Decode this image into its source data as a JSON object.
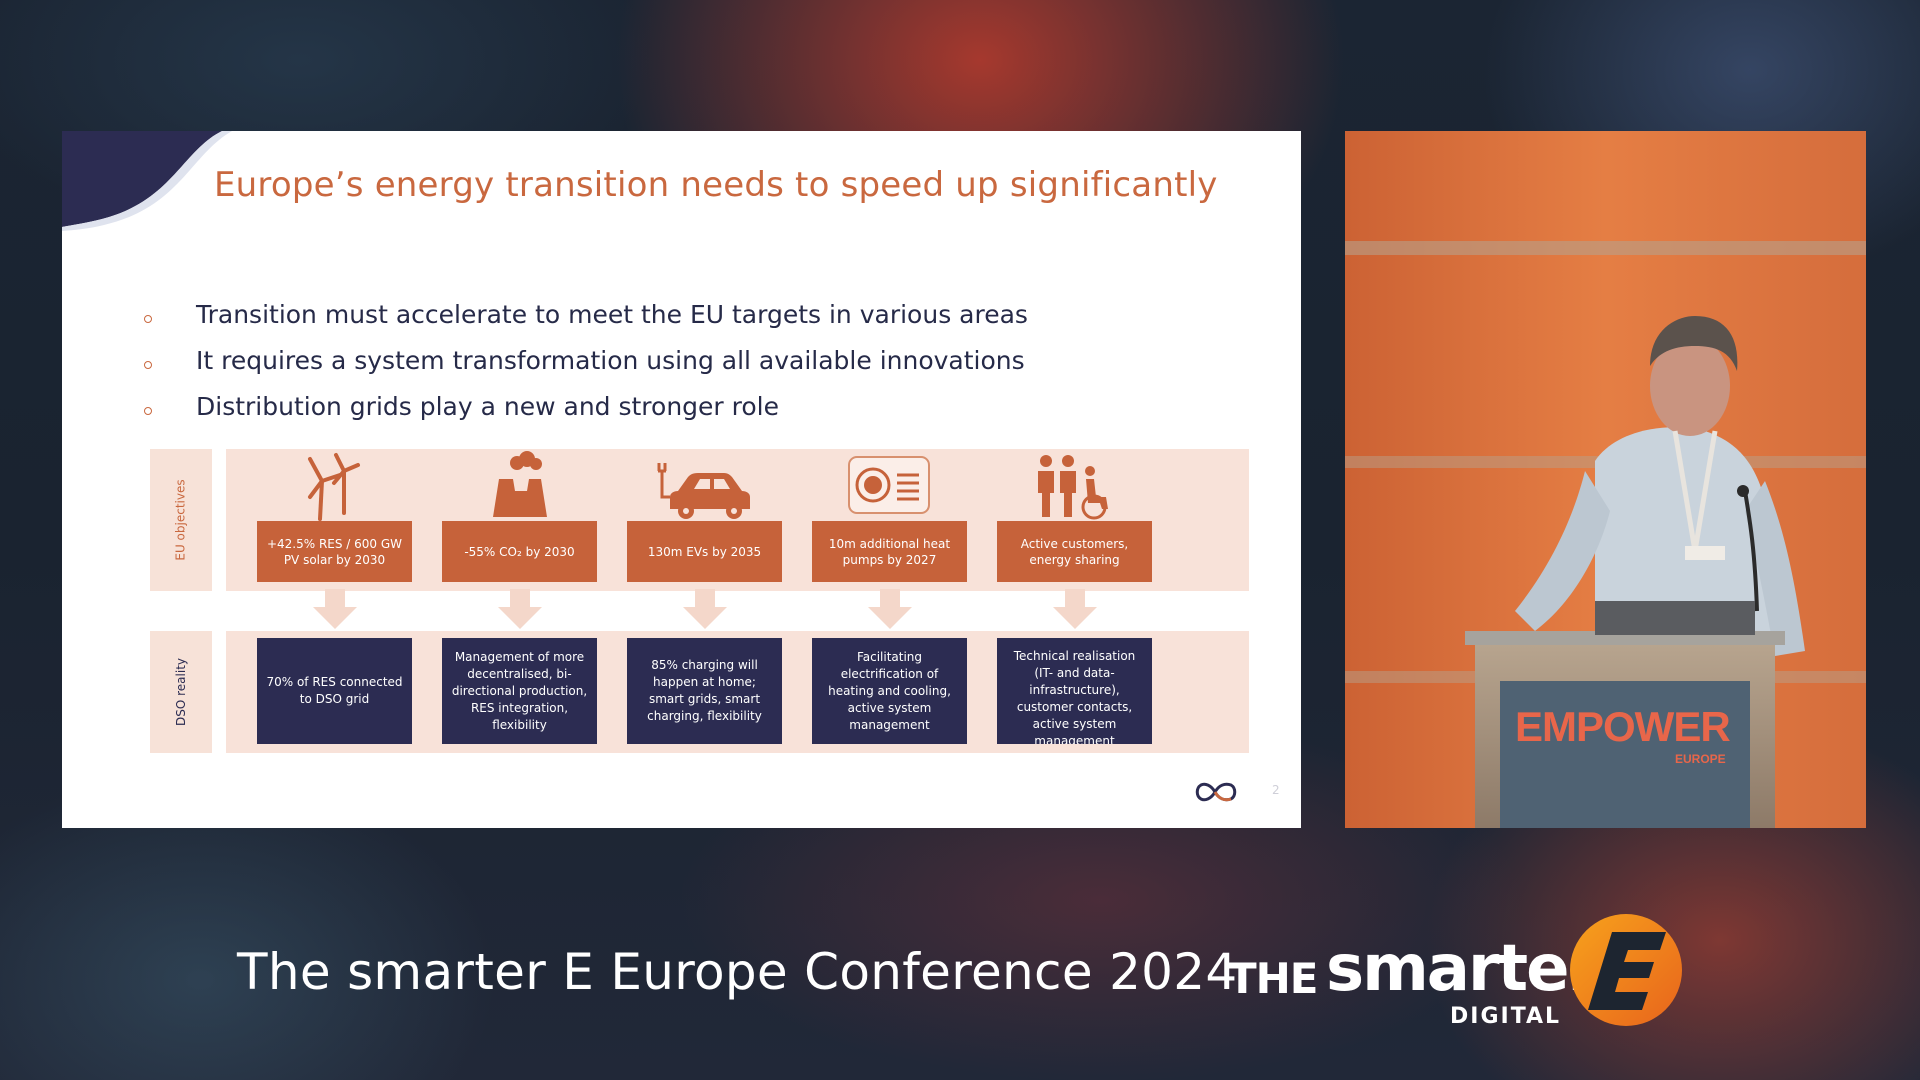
{
  "slide": {
    "title": "Europe’s energy transition needs to speed up significantly",
    "bullets": [
      "Transition must accelerate to meet the EU targets in various areas",
      "It requires a system transformation using all available innovations",
      "Distribution grids play a new and stronger role"
    ],
    "row_labels": {
      "objectives": "EU objectives",
      "reality": "DSO reality"
    },
    "objectives": [
      {
        "icon": "wind-turbine-icon",
        "text": "+42.5% RES / 600 GW PV solar by 2030"
      },
      {
        "icon": "factory-icon",
        "text": "-55% CO₂ by 2030"
      },
      {
        "icon": "electric-car-icon",
        "text": "130m EVs by 2035"
      },
      {
        "icon": "heat-pump-icon",
        "text": "10m additional heat pumps by 2027"
      },
      {
        "icon": "people-icon",
        "text": "Active customers, energy sharing"
      }
    ],
    "dso_reality": [
      "70% of RES connected to DSO grid",
      "Management of more decentralised, bi-directional production, RES integration, flexibility",
      "85% charging will happen at home; smart grids, smart charging, flexibility",
      "Facilitating electrification of heating and cooling, active system management",
      "Technical realisation (IT- and data-infrastructure), customer contacts, active system management"
    ],
    "page_number": "2",
    "colors": {
      "accent": "#c9683f",
      "navy": "#2c2c52",
      "band": "#f8e2d9"
    }
  },
  "video": {
    "podium_brand": "EMPOWER",
    "podium_sub": "EUROPE"
  },
  "footer": {
    "conference_title": "The smarter E Europe Conference 2024",
    "brand_the": "THE",
    "brand_smarter": "smarter",
    "brand_digital": "DIGITAL"
  }
}
